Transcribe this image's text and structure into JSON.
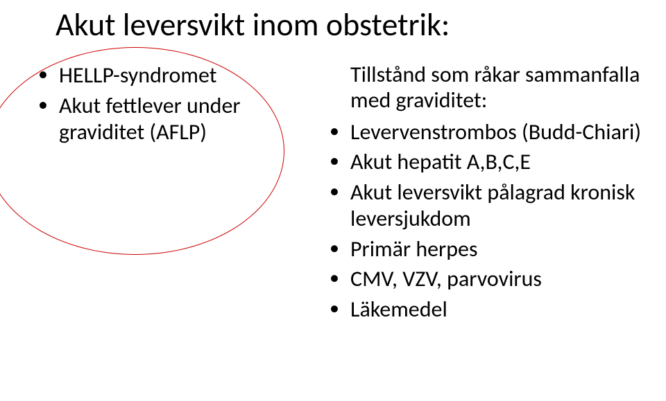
{
  "title": "Akut leversvikt inom obstetrik:",
  "left": {
    "items": [
      "HELLP-syndromet",
      "Akut fettlever under graviditet (AFLP)"
    ]
  },
  "right": {
    "intro": "Tillstånd som råkar sammanfalla med graviditet:",
    "items": [
      "Levervenstrombos (Budd-Chiari)",
      "Akut hepatit A,B,C,E",
      "Akut leversvikt pålagrad kronisk leversjukdom",
      "Primär herpes",
      "CMV, VZV, parvovirus",
      "Läkemedel"
    ]
  },
  "style": {
    "background_color": "#ffffff",
    "title_color": "#000000",
    "title_fontsize": 46,
    "text_color": "#000000",
    "text_fontsize": 32,
    "ellipse_color": "#cc0000",
    "ellipse_border_width": 1.5
  }
}
